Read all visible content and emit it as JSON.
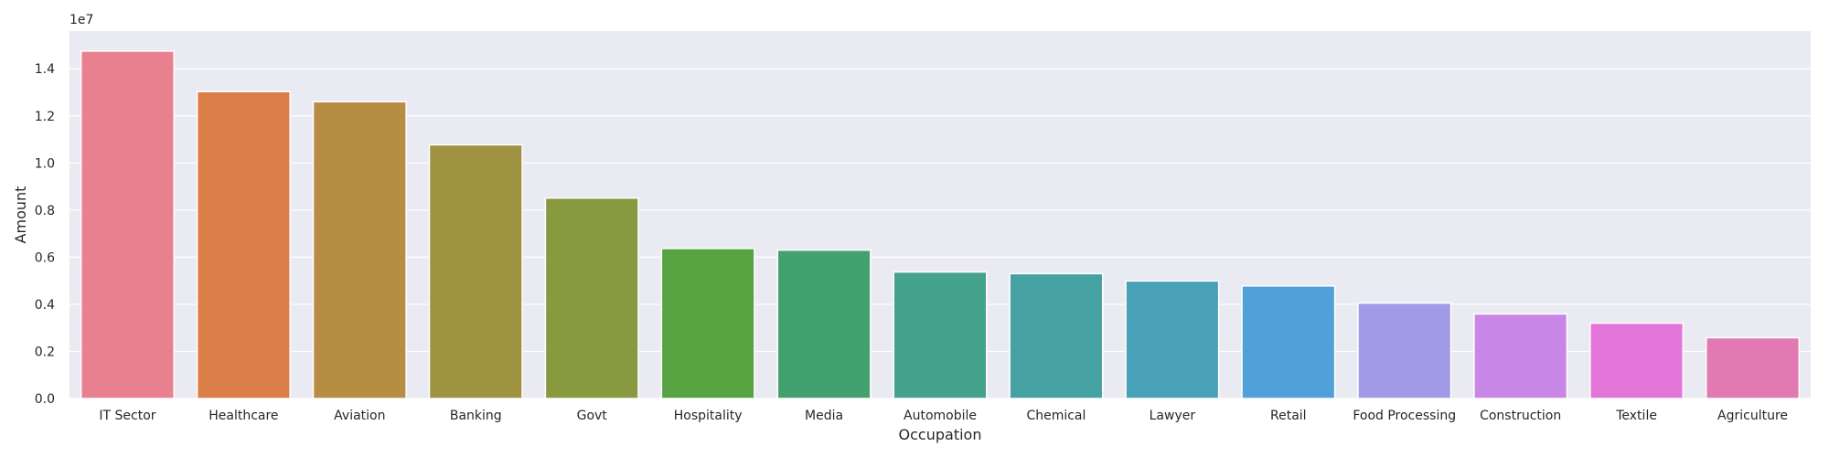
{
  "chart_data": {
    "type": "bar",
    "title": "",
    "xlabel": "Occupation",
    "ylabel": "Amount",
    "y_offset_label": "1e7",
    "ylim": [
      0,
      15600000
    ],
    "yticks": [
      0,
      2000000,
      4000000,
      6000000,
      8000000,
      10000000,
      12000000,
      14000000
    ],
    "ytick_labels": [
      "0.0",
      "0.2",
      "0.4",
      "0.6",
      "0.8",
      "1.0",
      "1.2",
      "1.4"
    ],
    "grid": true,
    "legend": "none",
    "background_color": "#eaeaf2",
    "grid_color": "#ffffff",
    "categories": [
      "IT Sector",
      "Healthcare",
      "Aviation",
      "Banking",
      "Govt",
      "Hospitality",
      "Media",
      "Automobile",
      "Chemical",
      "Lawyer",
      "Retail",
      "Food Processing",
      "Construction",
      "Textile",
      "Agriculture"
    ],
    "values": [
      14750000,
      13030000,
      12600000,
      10770000,
      8510000,
      6370000,
      6300000,
      5370000,
      5300000,
      4990000,
      4780000,
      4050000,
      3590000,
      3200000,
      2580000
    ],
    "colors": [
      "#e8808f",
      "#dc7e49",
      "#b78c43",
      "#9f9240",
      "#889940",
      "#57a342",
      "#43a16f",
      "#44a28d",
      "#45a1a2",
      "#48a1b6",
      "#52a0d9",
      "#a19ae7",
      "#c886e6",
      "#e476da",
      "#e279b3"
    ]
  }
}
